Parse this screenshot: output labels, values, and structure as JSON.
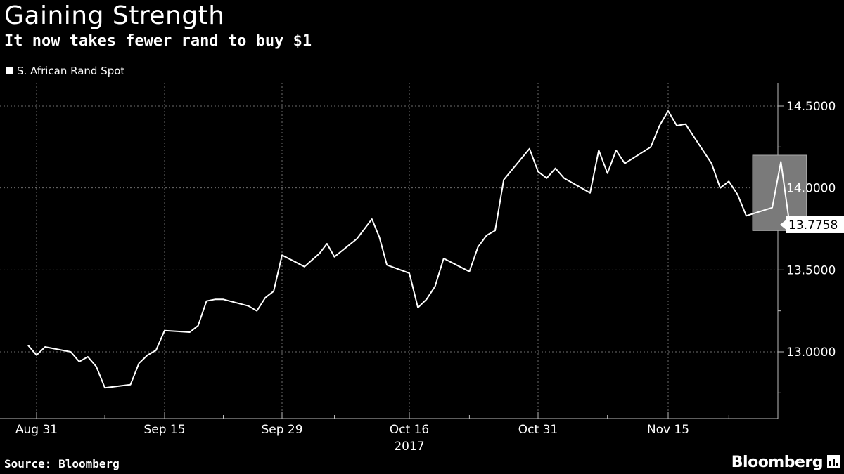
{
  "header": {
    "title": "Gaining Strength",
    "subtitle": "It now takes fewer rand to buy $1"
  },
  "legend": {
    "label": "S. African Rand Spot"
  },
  "footer": {
    "source": "Source: Bloomberg",
    "brand": "Bloomberg"
  },
  "colors": {
    "background": "#000000",
    "line": "#ffffff",
    "grid": "#6e6e6e",
    "highlight": "#7a7a7a"
  },
  "chart_data": {
    "type": "line",
    "title": "Gaining Strength",
    "subtitle": "It now takes fewer rand to buy $1",
    "x_ticks": [
      {
        "label": "Aug 31",
        "date": "2017-08-31"
      },
      {
        "label": "Sep 15",
        "date": "2017-09-15"
      },
      {
        "label": "Sep 29",
        "date": "2017-09-29"
      },
      {
        "label": "Oct 16",
        "date": "2017-10-16"
      },
      {
        "label": "Oct 31",
        "date": "2017-10-31"
      },
      {
        "label": "Nov 15",
        "date": "2017-11-15"
      }
    ],
    "x_year_label": "2017",
    "y_ticks": [
      "14.5000",
      "14.0000",
      "13.5000",
      "13.0000"
    ],
    "ylim": [
      12.75,
      14.65
    ],
    "last_value_label": "13.7758",
    "grid": true,
    "legend_position": "top-left",
    "series": [
      {
        "name": "S. African Rand Spot",
        "points": [
          [
            "2017-08-30",
            13.04
          ],
          [
            "2017-08-31",
            12.98
          ],
          [
            "2017-09-01",
            13.03
          ],
          [
            "2017-09-04",
            13.0
          ],
          [
            "2017-09-05",
            12.94
          ],
          [
            "2017-09-06",
            12.97
          ],
          [
            "2017-09-07",
            12.91
          ],
          [
            "2017-09-08",
            12.78
          ],
          [
            "2017-09-11",
            12.8
          ],
          [
            "2017-09-12",
            12.93
          ],
          [
            "2017-09-13",
            12.98
          ],
          [
            "2017-09-14",
            13.01
          ],
          [
            "2017-09-15",
            13.13
          ],
          [
            "2017-09-18",
            13.12
          ],
          [
            "2017-09-19",
            13.16
          ],
          [
            "2017-09-20",
            13.31
          ],
          [
            "2017-09-21",
            13.32
          ],
          [
            "2017-09-22",
            13.32
          ],
          [
            "2017-09-25",
            13.28
          ],
          [
            "2017-09-26",
            13.25
          ],
          [
            "2017-09-27",
            13.33
          ],
          [
            "2017-09-28",
            13.37
          ],
          [
            "2017-09-29",
            13.59
          ],
          [
            "2017-10-02",
            13.52
          ],
          [
            "2017-10-03",
            13.56
          ],
          [
            "2017-10-04",
            13.6
          ],
          [
            "2017-10-05",
            13.66
          ],
          [
            "2017-10-06",
            13.58
          ],
          [
            "2017-10-09",
            13.69
          ],
          [
            "2017-10-10",
            13.75
          ],
          [
            "2017-10-11",
            13.81
          ],
          [
            "2017-10-12",
            13.7
          ],
          [
            "2017-10-13",
            13.53
          ],
          [
            "2017-10-16",
            13.48
          ],
          [
            "2017-10-17",
            13.27
          ],
          [
            "2017-10-18",
            13.32
          ],
          [
            "2017-10-19",
            13.4
          ],
          [
            "2017-10-20",
            13.57
          ],
          [
            "2017-10-23",
            13.49
          ],
          [
            "2017-10-24",
            13.64
          ],
          [
            "2017-10-25",
            13.71
          ],
          [
            "2017-10-26",
            13.74
          ],
          [
            "2017-10-27",
            14.05
          ],
          [
            "2017-10-30",
            14.24
          ],
          [
            "2017-10-31",
            14.1
          ],
          [
            "2017-11-01",
            14.06
          ],
          [
            "2017-11-02",
            14.12
          ],
          [
            "2017-11-03",
            14.06
          ],
          [
            "2017-11-06",
            13.97
          ],
          [
            "2017-11-07",
            14.23
          ],
          [
            "2017-11-08",
            14.09
          ],
          [
            "2017-11-09",
            14.23
          ],
          [
            "2017-11-10",
            14.15
          ],
          [
            "2017-11-13",
            14.25
          ],
          [
            "2017-11-14",
            14.38
          ],
          [
            "2017-11-15",
            14.47
          ],
          [
            "2017-11-16",
            14.38
          ],
          [
            "2017-11-17",
            14.39
          ],
          [
            "2017-11-20",
            14.15
          ],
          [
            "2017-11-21",
            14.0
          ],
          [
            "2017-11-22",
            14.04
          ],
          [
            "2017-11-23",
            13.96
          ],
          [
            "2017-11-24",
            13.83
          ],
          [
            "2017-11-27",
            13.88
          ],
          [
            "2017-11-28",
            14.16
          ],
          [
            "2017-11-29",
            13.7758
          ]
        ]
      }
    ]
  }
}
